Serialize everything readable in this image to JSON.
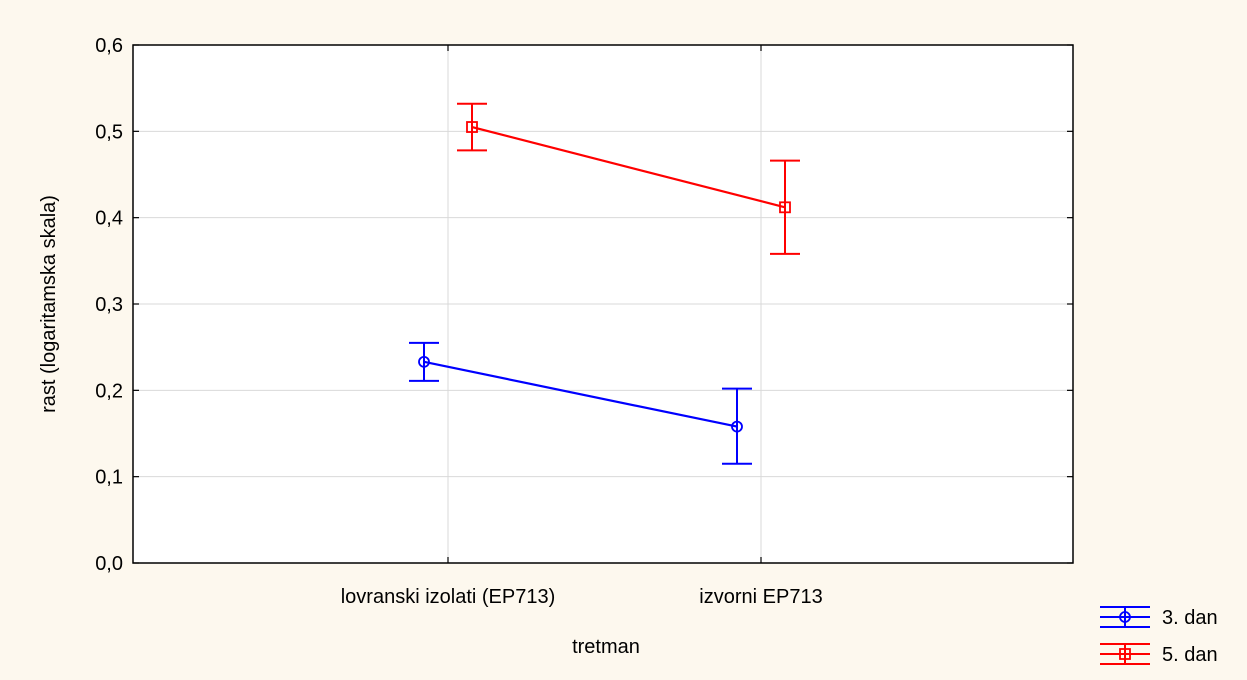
{
  "chart_data": {
    "type": "line",
    "title": "",
    "xlabel": "tretman",
    "ylabel": "rast (logaritamska skala)",
    "categories": [
      "lovranski izolati (EP713)",
      "izvorni EP713"
    ],
    "ylim": [
      0.0,
      0.6
    ],
    "yticks": [
      "0,0",
      "0,1",
      "0,2",
      "0,3",
      "0,4",
      "0,5",
      "0,6"
    ],
    "grid": true,
    "legend_position": "bottom-right",
    "series": [
      {
        "name": "3. dan",
        "color": "#0000ff",
        "marker": "circle",
        "values": [
          0.233,
          0.158
        ],
        "lower": [
          0.211,
          0.115
        ],
        "upper": [
          0.255,
          0.202
        ]
      },
      {
        "name": "5. dan",
        "color": "#ff0000",
        "marker": "square",
        "values": [
          0.505,
          0.412
        ],
        "lower": [
          0.478,
          0.358
        ],
        "upper": [
          0.532,
          0.466
        ]
      }
    ]
  }
}
